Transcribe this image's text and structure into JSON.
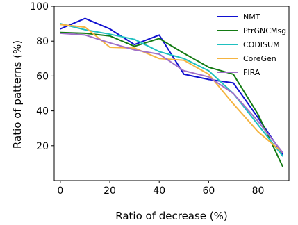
{
  "chart_data": {
    "type": "line",
    "title": "",
    "xlabel": "Ratio of decrease (%)",
    "ylabel": "Ratio of patterns (%)",
    "x": [
      0,
      10,
      20,
      30,
      40,
      50,
      60,
      70,
      80,
      90
    ],
    "xlim": [
      -2.5,
      92.5
    ],
    "ylim": [
      0,
      100
    ],
    "xticks": [
      0,
      20,
      40,
      60,
      80
    ],
    "yticks": [
      20,
      40,
      60,
      80,
      100
    ],
    "grid": false,
    "legend_position": "top-right",
    "series": [
      {
        "name": "NMT",
        "color": "#1010d0",
        "values": [
          87,
          93,
          87,
          78,
          83.5,
          61,
          58,
          56,
          36,
          15
        ]
      },
      {
        "name": "PtrGNCMsg",
        "color": "#137a13",
        "values": [
          85,
          84.5,
          83,
          77,
          81.5,
          73,
          65,
          61,
          38,
          8
        ]
      },
      {
        "name": "CODISUM",
        "color": "#1fc0c0",
        "values": [
          90,
          86.5,
          84,
          81,
          74,
          70,
          63,
          50,
          32,
          14
        ]
      },
      {
        "name": "CoreGen",
        "color": "#f5b440",
        "values": [
          89.5,
          88,
          76.5,
          76,
          70,
          69,
          61,
          44,
          28,
          16
        ]
      },
      {
        "name": "FIRA",
        "color": "#a070c8",
        "values": [
          84.5,
          83.5,
          79,
          75,
          72.5,
          63,
          59.5,
          50,
          34,
          16
        ]
      }
    ]
  }
}
